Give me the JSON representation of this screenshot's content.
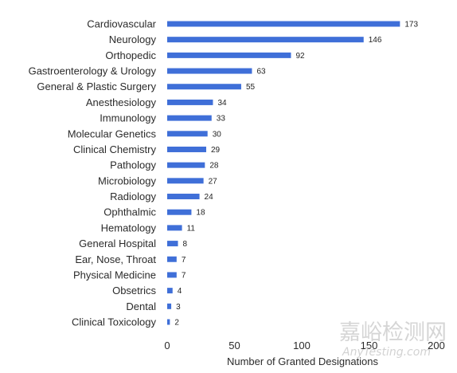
{
  "chart_data": {
    "type": "bar",
    "orientation": "horizontal",
    "categories": [
      "Cardiovascular",
      "Neurology",
      "Orthopedic",
      "Gastroenterology & Urology",
      "General & Plastic Surgery",
      "Anesthesiology",
      "Immunology",
      "Molecular Genetics",
      "Clinical Chemistry",
      "Pathology",
      "Microbiology",
      "Radiology",
      "Ophthalmic",
      "Hematology",
      "General Hospital",
      "Ear, Nose, Throat",
      "Physical Medicine",
      "Obsetrics",
      "Dental",
      "Clinical Toxicology"
    ],
    "values": [
      173,
      146,
      92,
      63,
      55,
      34,
      33,
      30,
      29,
      28,
      27,
      24,
      18,
      11,
      8,
      7,
      7,
      4,
      3,
      2
    ],
    "xlabel": "Number of Granted Designations",
    "ylabel": "",
    "xlim": [
      0,
      200
    ],
    "xticks": [
      0,
      50,
      100,
      150,
      200
    ],
    "grid": false,
    "bar_color": "#3f6fd8"
  },
  "watermark": {
    "text_cn": "嘉峪检测网",
    "text_en": "AnyTesting.com"
  }
}
